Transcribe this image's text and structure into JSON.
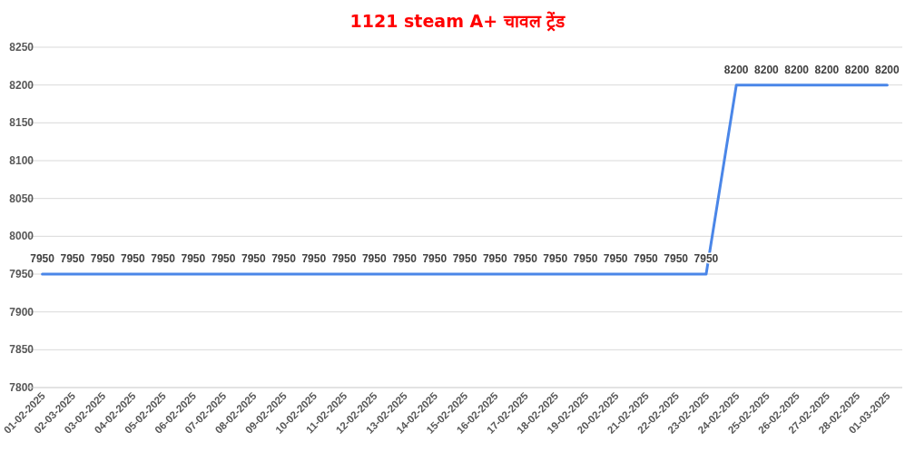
{
  "chart_data": {
    "type": "line",
    "title": "1121 steam A+ चावल ट्रेंड",
    "categories": [
      "01-02-2025",
      "02-03-2025",
      "03-02-2025",
      "04-02-2025",
      "05-02-2025",
      "06-02-2025",
      "07-02-2025",
      "08-02-2025",
      "09-02-2025",
      "10-02-2025",
      "11-02-2025",
      "12-02-2025",
      "13-02-2025",
      "14-02-2025",
      "15-02-2025",
      "16-02-2025",
      "17-02-2025",
      "18-02-2025",
      "19-02-2025",
      "20-02-2025",
      "21-02-2025",
      "22-02-2025",
      "23-02-2025",
      "24-02-2025",
      "25-02-2025",
      "26-02-2025",
      "27-02-2025",
      "28-02-2025",
      "01-03-2025"
    ],
    "series": [
      {
        "color": "#4a86e8",
        "values": [
          7950,
          7950,
          7950,
          7950,
          7950,
          7950,
          7950,
          7950,
          7950,
          7950,
          7950,
          7950,
          7950,
          7950,
          7950,
          7950,
          7950,
          7950,
          7950,
          7950,
          7950,
          7950,
          7950,
          8200,
          8200,
          8200,
          8200,
          8200,
          8200
        ]
      }
    ],
    "ylim": [
      7800,
      8250
    ],
    "yticks": [
      7800,
      7850,
      7900,
      7950,
      8000,
      8050,
      8100,
      8150,
      8200,
      8250
    ],
    "grid": "y",
    "data_labels": true,
    "marker": "none",
    "line_style": "solid"
  }
}
